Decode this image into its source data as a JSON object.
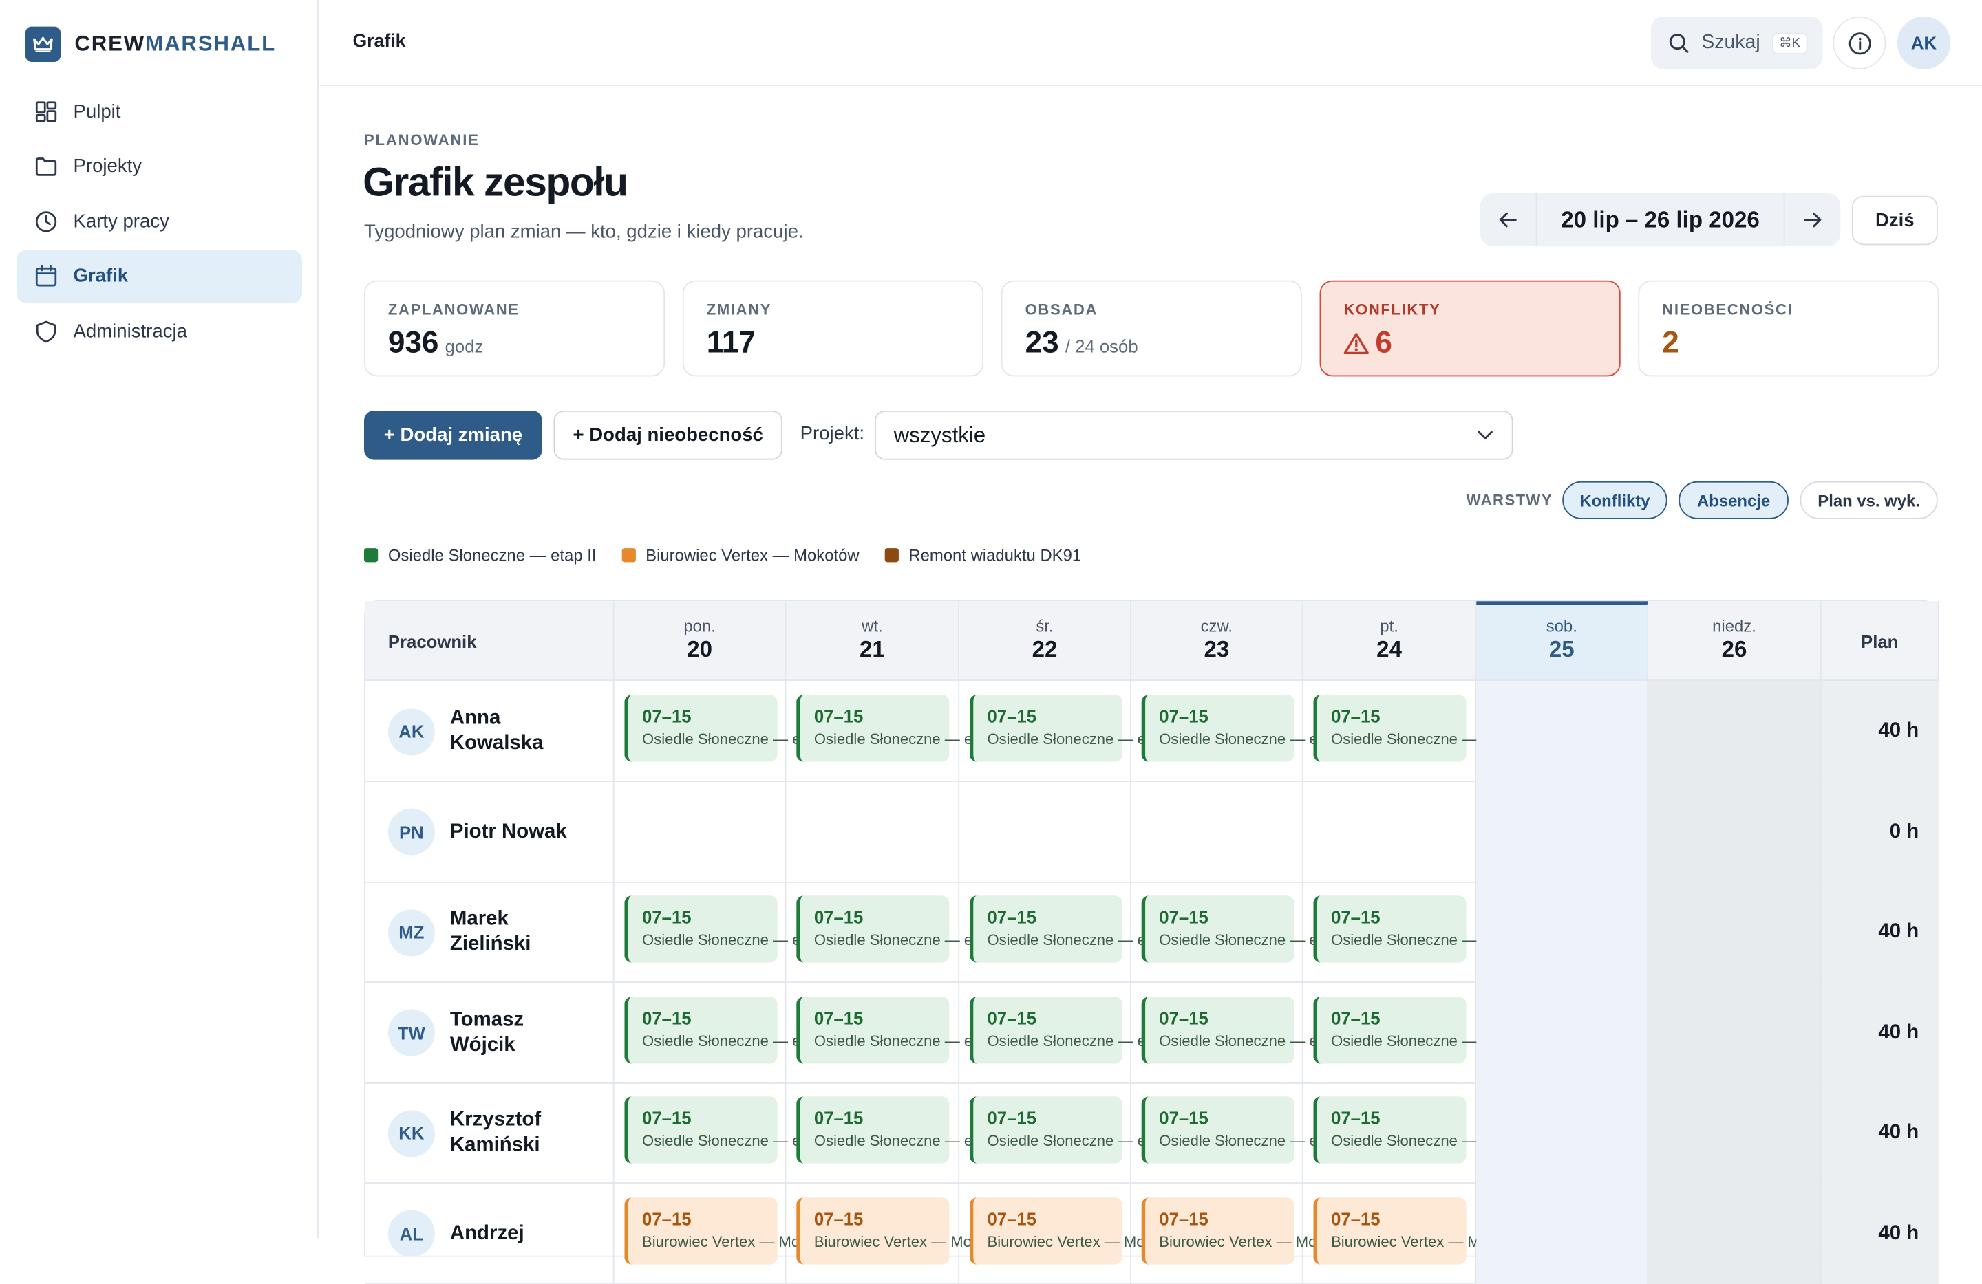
{
  "app": {
    "brand_prefix": "CREW",
    "brand_suffix": "MARSHALL"
  },
  "sidebar": {
    "items": [
      {
        "label": "Pulpit",
        "icon": "dashboard-icon"
      },
      {
        "label": "Projekty",
        "icon": "folder-icon"
      },
      {
        "label": "Karty pracy",
        "icon": "clock-icon"
      },
      {
        "label": "Grafik",
        "icon": "calendar-icon",
        "active": true
      },
      {
        "label": "Administracja",
        "icon": "shield-icon"
      }
    ]
  },
  "topbar": {
    "title": "Grafik",
    "search_label": "Szukaj",
    "search_shortcut": "⌘K",
    "avatar": "AK"
  },
  "page": {
    "eyebrow": "PLANOWANIE",
    "title": "Grafik zespołu",
    "subtitle": "Tygodniowy plan zmian — kto, gdzie i kiedy pracuje.",
    "week_range": "20 lip – 26 lip 2026",
    "today": "Dziś"
  },
  "stats": {
    "planned": {
      "label": "ZAPLANOWANE",
      "value": "936",
      "unit": "godz"
    },
    "shifts": {
      "label": "ZMIANY",
      "value": "117"
    },
    "staffing": {
      "label": "OBSADA",
      "value": "23",
      "unit": "/ 24 osób"
    },
    "conflicts": {
      "label": "KONFLIKTY",
      "value": "6"
    },
    "absences": {
      "label": "NIEOBECNOŚCI",
      "value": "2"
    }
  },
  "toolbar": {
    "add_shift": "+ Dodaj zmianę",
    "add_absence": "+ Dodaj nieobecność",
    "project_label": "Projekt:",
    "project_value": "wszystkie"
  },
  "layers": {
    "label": "WARSTWY",
    "chips": [
      {
        "label": "Konflikty",
        "active": true
      },
      {
        "label": "Absencje",
        "active": true
      },
      {
        "label": "Plan vs. wyk.",
        "active": false
      }
    ]
  },
  "legend": [
    {
      "label": "Osiedle Słoneczne — etap II",
      "color": "#1e7b3a"
    },
    {
      "label": "Biurowiec Vertex — Mokotów",
      "color": "#e58a2c"
    },
    {
      "label": "Remont wiaduktu DK91",
      "color": "#8a4a12"
    }
  ],
  "grid": {
    "employee_header": "Pracownik",
    "plan_header": "Plan",
    "days": [
      {
        "name": "pon.",
        "num": "20"
      },
      {
        "name": "wt.",
        "num": "21"
      },
      {
        "name": "śr.",
        "num": "22"
      },
      {
        "name": "czw.",
        "num": "23"
      },
      {
        "name": "pt.",
        "num": "24"
      },
      {
        "name": "sob.",
        "num": "25"
      },
      {
        "name": "niedz.",
        "num": "26"
      }
    ],
    "rows": [
      {
        "initials": "AK",
        "name": "Anna Kowalska",
        "plan": "40 h",
        "project": "g",
        "shift": "07–15",
        "project_name": "Osiedle Słoneczne — etap II",
        "days": [
          1,
          1,
          1,
          1,
          1,
          0,
          0
        ]
      },
      {
        "initials": "PN",
        "name": "Piotr Nowak",
        "plan": "0 h",
        "project": "g",
        "shift": "",
        "project_name": "",
        "days": [
          0,
          0,
          0,
          0,
          0,
          0,
          0
        ]
      },
      {
        "initials": "MZ",
        "name": "Marek Zieliński",
        "plan": "40 h",
        "project": "g",
        "shift": "07–15",
        "project_name": "Osiedle Słoneczne — etap II",
        "days": [
          1,
          1,
          1,
          1,
          1,
          0,
          0
        ]
      },
      {
        "initials": "TW",
        "name": "Tomasz Wójcik",
        "plan": "40 h",
        "project": "g",
        "shift": "07–15",
        "project_name": "Osiedle Słoneczne — etap II",
        "days": [
          1,
          1,
          1,
          1,
          1,
          0,
          0
        ]
      },
      {
        "initials": "KK",
        "name": "Krzysztof Kamiński",
        "plan": "40 h",
        "project": "g",
        "shift": "07–15",
        "project_name": "Osiedle Słoneczne — etap II",
        "days": [
          1,
          1,
          1,
          1,
          1,
          0,
          0
        ]
      },
      {
        "initials": "AL",
        "name": "Andrzej",
        "plan": "40 h",
        "project": "o",
        "shift": "07–15",
        "project_name": "Biurowiec Vertex — Mokotów",
        "days": [
          1,
          1,
          1,
          1,
          1,
          0,
          0
        ]
      }
    ]
  }
}
